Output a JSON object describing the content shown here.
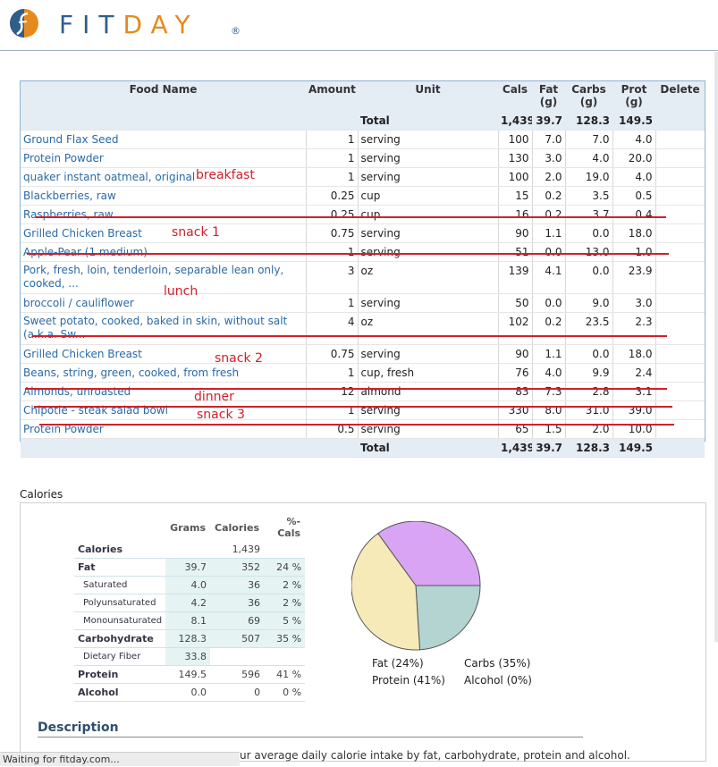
{
  "brand": {
    "fit": "FIT",
    "day": "DAY",
    "reg": "®"
  },
  "columns": {
    "food": "Food Name",
    "amount": "Amount",
    "unit": "Unit",
    "cals": "Cals",
    "fat": "Fat",
    "fat_u": "(g)",
    "carbs": "Carbs",
    "carbs_u": "(g)",
    "prot": "Prot",
    "prot_u": "(g)",
    "delete": "Delete"
  },
  "total": {
    "label": "Total",
    "cals": "1,439",
    "fat": "39.7",
    "carbs": "128.3",
    "prot": "149.5"
  },
  "foods": [
    {
      "name": "Ground Flax Seed",
      "amount": "1",
      "unit": "serving",
      "cals": "100",
      "fat": "7.0",
      "carbs": "7.0",
      "prot": "4.0"
    },
    {
      "name": "Protein Powder",
      "amount": "1",
      "unit": "serving",
      "cals": "130",
      "fat": "3.0",
      "carbs": "4.0",
      "prot": "20.0"
    },
    {
      "name": "quaker instant oatmeal, original",
      "amount": "1",
      "unit": "serving",
      "cals": "100",
      "fat": "2.0",
      "carbs": "19.0",
      "prot": "4.0"
    },
    {
      "name": "Blackberries, raw",
      "amount": "0.25",
      "unit": "cup",
      "cals": "15",
      "fat": "0.2",
      "carbs": "3.5",
      "prot": "0.5"
    },
    {
      "name": "Raspberries, raw",
      "amount": "0.25",
      "unit": "cup",
      "cals": "16",
      "fat": "0.2",
      "carbs": "3.7",
      "prot": "0.4"
    },
    {
      "name": "Grilled Chicken Breast",
      "amount": "0.75",
      "unit": "serving",
      "cals": "90",
      "fat": "1.1",
      "carbs": "0.0",
      "prot": "18.0"
    },
    {
      "name": "Apple-Pear (1 medium)",
      "amount": "1",
      "unit": "serving",
      "cals": "51",
      "fat": "0.0",
      "carbs": "13.0",
      "prot": "1.0"
    },
    {
      "name": "Pork, fresh, loin, tenderloin, separable lean only, cooked, ...",
      "amount": "3",
      "unit": "oz",
      "cals": "139",
      "fat": "4.1",
      "carbs": "0.0",
      "prot": "23.9"
    },
    {
      "name": "broccoli / cauliflower",
      "amount": "1",
      "unit": "serving",
      "cals": "50",
      "fat": "0.0",
      "carbs": "9.0",
      "prot": "3.0"
    },
    {
      "name": "Sweet potato, cooked, baked in skin, without salt (a.k.a. Sw...",
      "amount": "4",
      "unit": "oz",
      "cals": "102",
      "fat": "0.2",
      "carbs": "23.5",
      "prot": "2.3"
    },
    {
      "name": "Grilled Chicken Breast",
      "amount": "0.75",
      "unit": "serving",
      "cals": "90",
      "fat": "1.1",
      "carbs": "0.0",
      "prot": "18.0"
    },
    {
      "name": "Beans, string, green, cooked, from fresh",
      "amount": "1",
      "unit": "cup, fresh",
      "cals": "76",
      "fat": "4.0",
      "carbs": "9.9",
      "prot": "2.4"
    },
    {
      "name": "Almonds, unroasted",
      "amount": "12",
      "unit": "almond",
      "cals": "83",
      "fat": "7.3",
      "carbs": "2.8",
      "prot": "3.1"
    },
    {
      "name": "Chipotle - steak salad bowl",
      "amount": "1",
      "unit": "serving",
      "cals": "330",
      "fat": "8.0",
      "carbs": "31.0",
      "prot": "39.0"
    },
    {
      "name": "Protein Powder",
      "amount": "0.5",
      "unit": "serving",
      "cals": "65",
      "fat": "1.5",
      "carbs": "2.0",
      "prot": "10.0"
    }
  ],
  "annotations": {
    "breakfast": "breakfast",
    "snack1": "snack 1",
    "lunch": "lunch",
    "snack2": "snack 2",
    "dinner": "dinner",
    "snack3": "snack 3"
  },
  "calories": {
    "title": "Calories",
    "headers": {
      "grams": "Grams",
      "calories": "Calories",
      "pct": "%-Cals"
    },
    "rows": [
      {
        "label": "Calories",
        "grams": "",
        "calories": "1,439",
        "pct": ""
      },
      {
        "label": "Fat",
        "grams": "39.7",
        "calories": "352",
        "pct": "24 %"
      },
      {
        "label": "Saturated",
        "grams": "4.0",
        "calories": "36",
        "pct": "2 %"
      },
      {
        "label": "Polyunsaturated",
        "grams": "4.2",
        "calories": "36",
        "pct": "2 %"
      },
      {
        "label": "Monounsaturated",
        "grams": "8.1",
        "calories": "69",
        "pct": "5 %"
      },
      {
        "label": "Carbohydrate",
        "grams": "128.3",
        "calories": "507",
        "pct": "35 %"
      },
      {
        "label": "Dietary Fiber",
        "grams": "33.8",
        "calories": "",
        "pct": ""
      },
      {
        "label": "Protein",
        "grams": "149.5",
        "calories": "596",
        "pct": "41 %"
      },
      {
        "label": "Alcohol",
        "grams": "0.0",
        "calories": "0",
        "pct": "0 %"
      }
    ],
    "legend": {
      "fat": "Fat  (24%)",
      "carbs": "Carbs  (35%)",
      "protein": "Protein  (41%)",
      "alcohol": "Alcohol  (0%)"
    }
  },
  "chart_data": {
    "type": "pie",
    "categories": [
      "Fat",
      "Carbs",
      "Protein",
      "Alcohol"
    ],
    "values": [
      24,
      35,
      41,
      0
    ],
    "colors": {
      "Fat": "#b3d4d0",
      "Carbs": "#d9a4f4",
      "Protein": "#f5eab8",
      "Alcohol": "#cccccc"
    }
  },
  "description": {
    "title": "Description",
    "text": "ur average daily calorie intake by fat, carbohydrate, protein and alcohol."
  },
  "status": "Waiting for fitday.com..."
}
